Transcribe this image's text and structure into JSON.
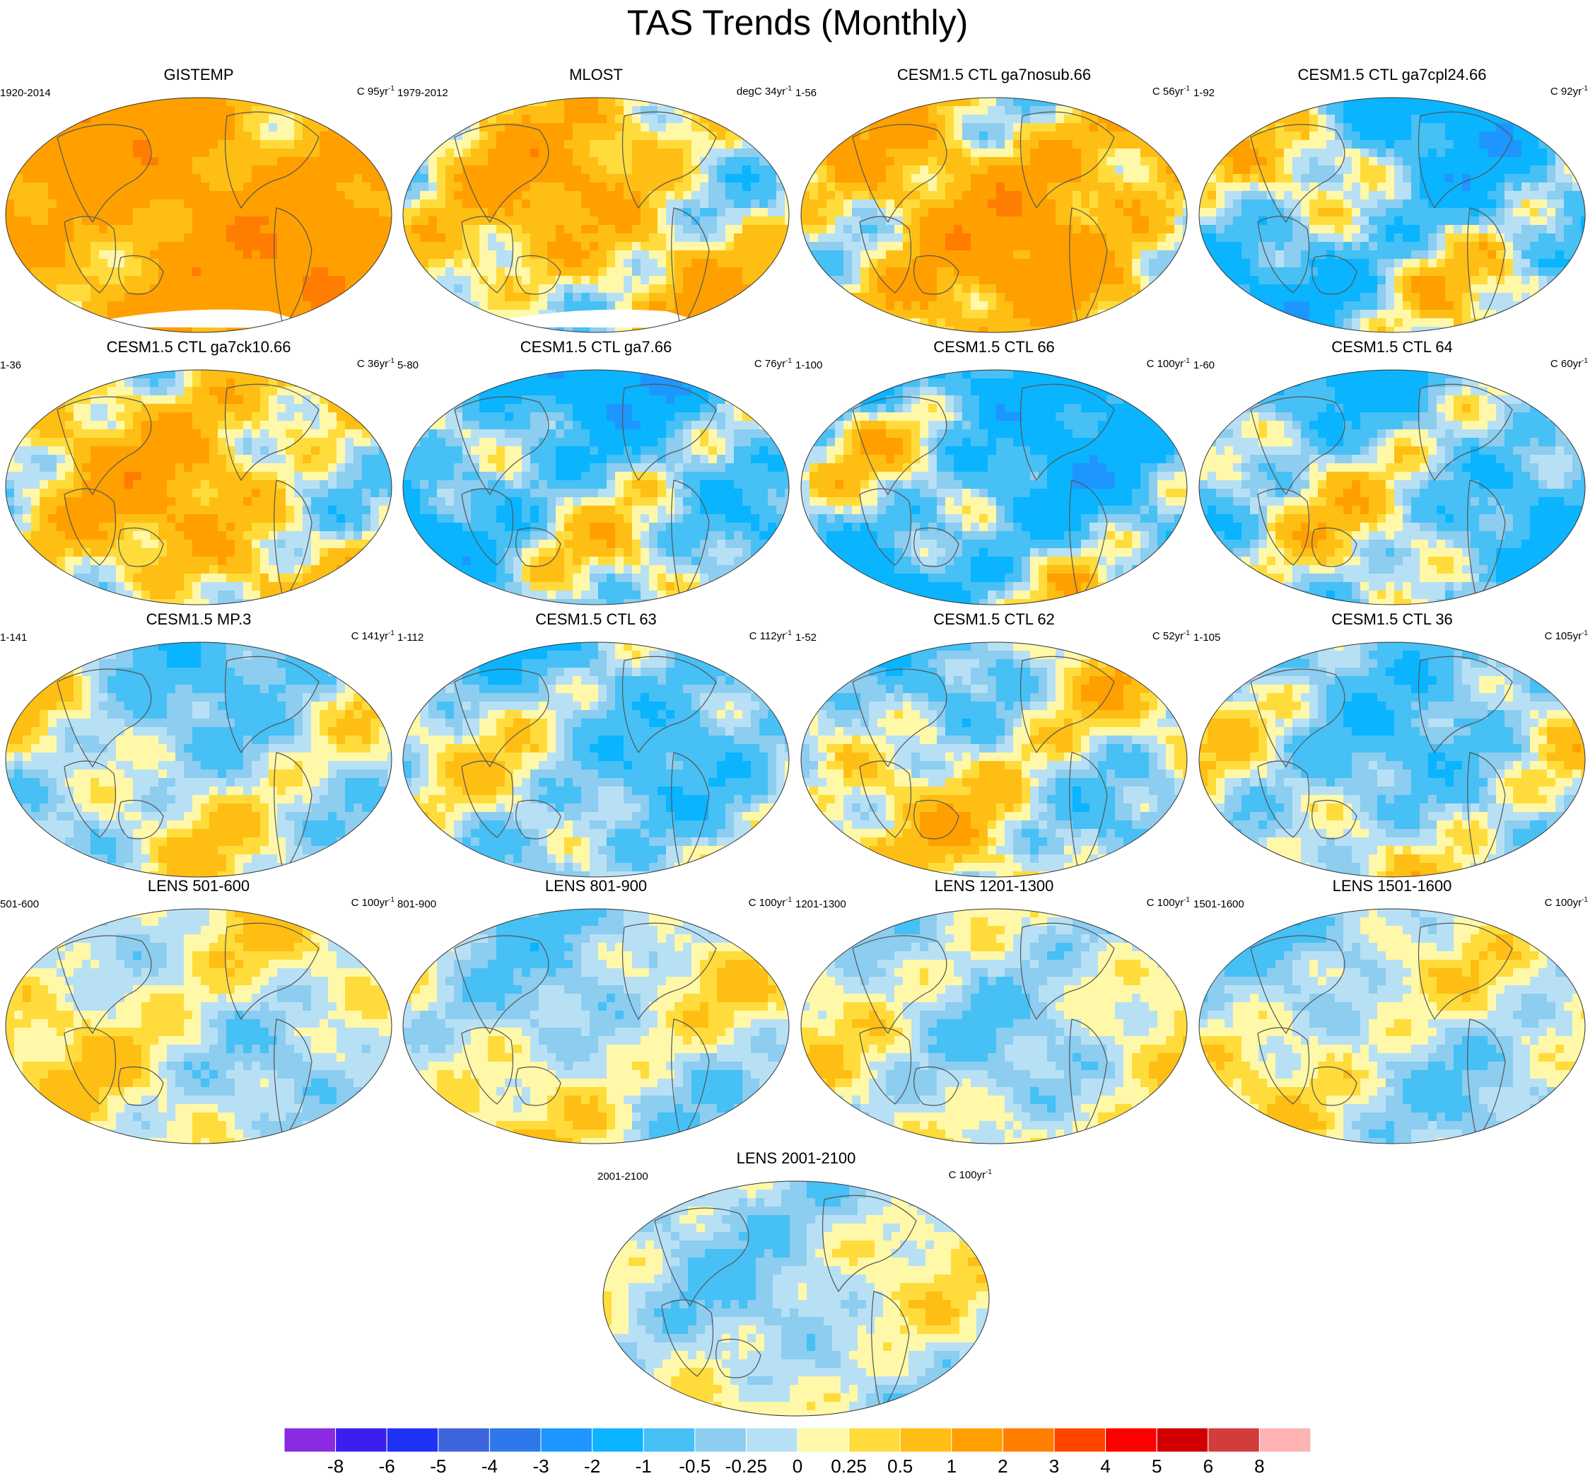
{
  "title": "TAS Trends (Monthly)",
  "panels": [
    {
      "title": "GISTEMP",
      "period": "1920-2014",
      "unit": "C 95yr",
      "base": 1.3,
      "amp": 0.7,
      "seed": 1,
      "missing": true
    },
    {
      "title": "MLOST",
      "period": "1979-2012",
      "unit": "degC 34yr",
      "base": 0.5,
      "amp": 0.9,
      "seed": 2,
      "missing": true
    },
    {
      "title": "CESM1.5 CTL ga7nosub.66",
      "period": "1-56",
      "unit": "C 56yr",
      "base": 0.8,
      "amp": 1.0,
      "seed": 3
    },
    {
      "title": "CESM1.5 CTL ga7cpl24.66",
      "period": "1-92",
      "unit": "C 92yr",
      "base": -0.4,
      "amp": 1.1,
      "seed": 4
    },
    {
      "title": "CESM1.5 CTL ga7ck10.66",
      "period": "1-36",
      "unit": "C 36yr",
      "base": 0.5,
      "amp": 0.9,
      "seed": 5
    },
    {
      "title": "CESM1.5 CTL ga7.66",
      "period": "5-80",
      "unit": "C 76yr",
      "base": -0.5,
      "amp": 1.0,
      "seed": 6
    },
    {
      "title": "CESM1.5 CTL 66",
      "period": "1-100",
      "unit": "C 100yr",
      "base": -0.6,
      "amp": 1.1,
      "seed": 7
    },
    {
      "title": "CESM1.5 CTL 64",
      "period": "1-60",
      "unit": "C 60yr",
      "base": -0.3,
      "amp": 0.9,
      "seed": 8
    },
    {
      "title": "CESM1.5 MP.3",
      "period": "1-141",
      "unit": "C 141yr",
      "base": -0.1,
      "amp": 0.6,
      "seed": 9
    },
    {
      "title": "CESM1.5 CTL 63",
      "period": "1-112",
      "unit": "C 112yr",
      "base": -0.3,
      "amp": 0.7,
      "seed": 10
    },
    {
      "title": "CESM1.5 CTL 62",
      "period": "1-52",
      "unit": "C 52yr",
      "base": 0.0,
      "amp": 0.8,
      "seed": 11
    },
    {
      "title": "CESM1.5 CTL 36",
      "period": "1-105",
      "unit": "C 105yr",
      "base": -0.25,
      "amp": 0.7,
      "seed": 12
    },
    {
      "title": "LENS 501-600",
      "period": "501-600",
      "unit": "C 100yr",
      "base": 0.05,
      "amp": 0.5,
      "seed": 13
    },
    {
      "title": "LENS 801-900",
      "period": "801-900",
      "unit": "C 100yr",
      "base": -0.05,
      "amp": 0.5,
      "seed": 14
    },
    {
      "title": "LENS 1201-1300",
      "period": "1201-1300",
      "unit": "C 100yr",
      "base": -0.05,
      "amp": 0.5,
      "seed": 15
    },
    {
      "title": "LENS 1501-1600",
      "period": "1501-1600",
      "unit": "C 100yr",
      "base": -0.05,
      "amp": 0.5,
      "seed": 16
    },
    {
      "title": "LENS 2001-2100",
      "period": "2001-2100",
      "unit": "C 100yr",
      "base": -0.1,
      "amp": 0.45,
      "seed": 17
    }
  ],
  "unit_exponent": "-1",
  "colorbar": {
    "colors": [
      "#8a2be2",
      "#3c1ef0",
      "#1e32f5",
      "#3c64dc",
      "#2d78ec",
      "#1e96ff",
      "#0ab4ff",
      "#46c0f5",
      "#8ccdf0",
      "#b8e0f5",
      "#fff8a8",
      "#ffdc3c",
      "#ffbe14",
      "#ffa000",
      "#ff7d00",
      "#ff4600",
      "#ff0000",
      "#d20000",
      "#d23c3c",
      "#ffb4b4"
    ],
    "labels": [
      "-8",
      "-6",
      "-5",
      "-4",
      "-3",
      "-2",
      "-1",
      "-0.5",
      "-0.25",
      "0",
      "0.25",
      "0.5",
      "1",
      "2",
      "3",
      "4",
      "5",
      "6",
      "8"
    ],
    "thresholds": [
      -8,
      -6,
      -5,
      -4,
      -3,
      -2,
      -1,
      -0.5,
      -0.25,
      0,
      0.25,
      0.5,
      1,
      2,
      3,
      4,
      5,
      6,
      8
    ]
  }
}
